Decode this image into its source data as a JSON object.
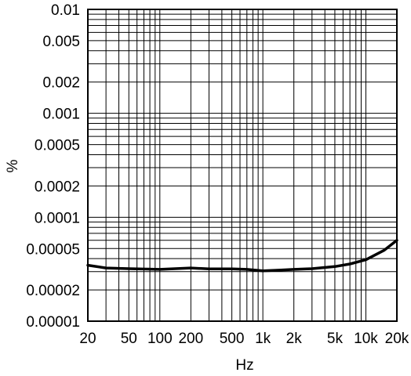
{
  "chart_data": {
    "type": "line",
    "xlabel": "Hz",
    "ylabel": "%",
    "xscale": "log",
    "yscale": "log",
    "xlim": [
      20,
      20000
    ],
    "ylim": [
      1e-05,
      0.01
    ],
    "grid": true,
    "x_tick_labels": [
      {
        "value": 20,
        "label": "20"
      },
      {
        "value": 50,
        "label": "50"
      },
      {
        "value": 100,
        "label": "100"
      },
      {
        "value": 200,
        "label": "200"
      },
      {
        "value": 500,
        "label": "500"
      },
      {
        "value": 1000,
        "label": "1k"
      },
      {
        "value": 2000,
        "label": "2k"
      },
      {
        "value": 5000,
        "label": "5k"
      },
      {
        "value": 10000,
        "label": "10k"
      },
      {
        "value": 20000,
        "label": "20k"
      }
    ],
    "y_tick_labels": [
      {
        "value": 0.01,
        "label": "0.01"
      },
      {
        "value": 0.005,
        "label": "0.005"
      },
      {
        "value": 0.002,
        "label": "0.002"
      },
      {
        "value": 0.001,
        "label": "0.001"
      },
      {
        "value": 0.0005,
        "label": "0.0005"
      },
      {
        "value": 0.0002,
        "label": "0.0002"
      },
      {
        "value": 0.0001,
        "label": "0.0001"
      },
      {
        "value": 5e-05,
        "label": "0.00005"
      },
      {
        "value": 2e-05,
        "label": "0.00002"
      },
      {
        "value": 1e-05,
        "label": "0.00001"
      }
    ],
    "series": [
      {
        "color": "#000000",
        "x": [
          20,
          30,
          50,
          100,
          200,
          300,
          500,
          700,
          1000,
          1500,
          2000,
          3000,
          5000,
          7000,
          10000,
          15000,
          20000
        ],
        "y": [
          3.45e-05,
          3.25e-05,
          3.2e-05,
          3.15e-05,
          3.25e-05,
          3.18e-05,
          3.18e-05,
          3.15e-05,
          3.05e-05,
          3.1e-05,
          3.15e-05,
          3.2e-05,
          3.35e-05,
          3.55e-05,
          3.9e-05,
          4.8e-05,
          6e-05
        ]
      }
    ]
  }
}
